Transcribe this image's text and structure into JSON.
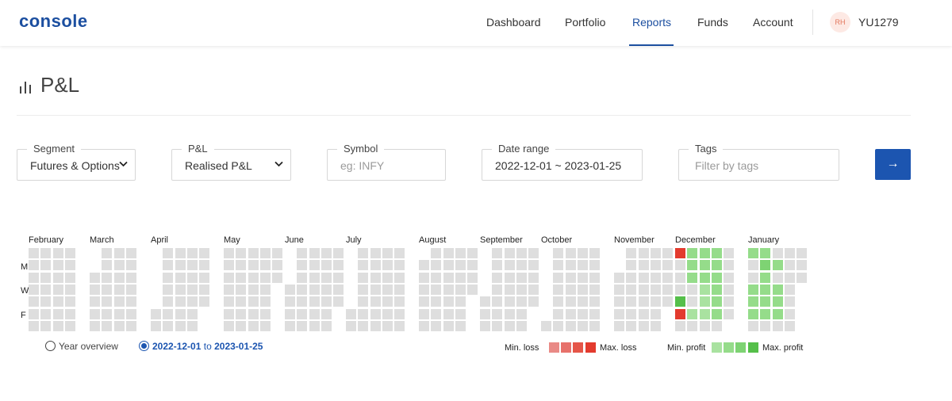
{
  "header": {
    "logo": "console",
    "nav": [
      {
        "id": "dashboard",
        "label": "Dashboard",
        "active": false
      },
      {
        "id": "portfolio",
        "label": "Portfolio",
        "active": false
      },
      {
        "id": "reports",
        "label": "Reports",
        "active": true
      },
      {
        "id": "funds",
        "label": "Funds",
        "active": false
      },
      {
        "id": "account",
        "label": "Account",
        "active": false
      }
    ],
    "avatar_initials": "RH",
    "user_id": "YU1279"
  },
  "page": {
    "title": "P&L",
    "title_icon": "bar-chart-icon"
  },
  "filters": {
    "segment": {
      "label": "Segment",
      "value": "Futures & Options"
    },
    "pnl": {
      "label": "P&L",
      "value": "Realised P&L"
    },
    "symbol": {
      "label": "Symbol",
      "placeholder": "eg: INFY",
      "value": ""
    },
    "date_range": {
      "label": "Date range",
      "value": "2022-12-01 ~ 2023-01-25"
    },
    "tags": {
      "label": "Tags",
      "placeholder": "Filter by tags",
      "value": ""
    },
    "submit_icon": "arrow-right-icon",
    "submit_glyph": "→"
  },
  "heatmap": {
    "months": [
      "February",
      "March",
      "April",
      "May",
      "June",
      "July",
      "August",
      "September",
      "October",
      "November",
      "December",
      "January"
    ],
    "day_labels": [
      "M",
      "W",
      "F"
    ],
    "highlighted_weeks": {
      "December": [
        [
          "l4",
          "p2",
          "p2",
          "p2",
          ""
        ],
        [
          "",
          "p2",
          "p2",
          "p2",
          ""
        ],
        [
          "",
          "p2",
          "p2",
          "p2",
          ""
        ],
        [
          "",
          "",
          "p1",
          "p2",
          ""
        ],
        [
          "p4",
          "",
          "p1",
          "p2",
          ""
        ],
        [
          "l4",
          "p1",
          "p1",
          "p2",
          ""
        ],
        [
          "",
          "",
          "",
          "",
          ""
        ]
      ],
      "January": [
        [
          "p2",
          "p2",
          "",
          "",
          ""
        ],
        [
          "",
          "p3",
          "p2",
          "",
          ""
        ],
        [
          "",
          "p2",
          "",
          "",
          ""
        ],
        [
          "p2",
          "p2",
          "p2",
          "",
          ""
        ],
        [
          "p2",
          "p2",
          "p2",
          "",
          ""
        ],
        [
          "p2",
          "p2",
          "p2",
          "",
          ""
        ],
        [
          "",
          "",
          "",
          "",
          ""
        ]
      ]
    },
    "colors": {
      "empty": "#dedede",
      "loss_levels": [
        "#e98a86",
        "#e7716b",
        "#e55548",
        "#e33b2e"
      ],
      "profit_levels": [
        "#a9e2a0",
        "#95dc8a",
        "#7ed373",
        "#55bf4a"
      ]
    }
  },
  "range_toggle": {
    "year_overview": "Year overview",
    "custom_start": "2022-12-01",
    "custom_to": "to",
    "custom_end": "2023-01-25",
    "selected": "custom"
  },
  "legend": {
    "min_loss": "Min. loss",
    "max_loss": "Max. loss",
    "min_profit": "Min. profit",
    "max_profit": "Max. profit"
  }
}
